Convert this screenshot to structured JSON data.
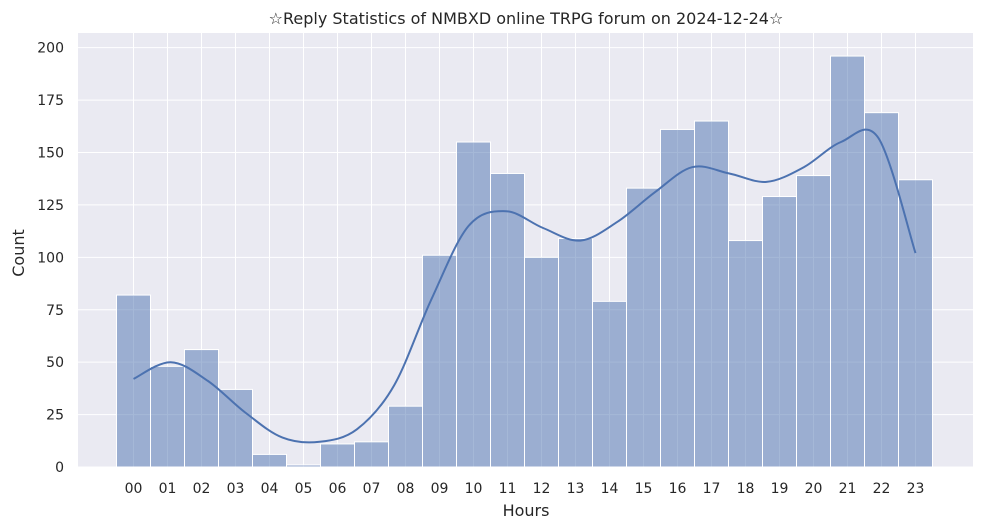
{
  "chart_data": {
    "type": "bar",
    "title": "☆Reply Statistics of NMBXD online TRPG forum on 2024-12-24☆",
    "xlabel": "Hours",
    "ylabel": "Count",
    "categories": [
      "00",
      "01",
      "02",
      "03",
      "04",
      "05",
      "06",
      "07",
      "08",
      "09",
      "10",
      "11",
      "12",
      "13",
      "14",
      "15",
      "16",
      "17",
      "18",
      "19",
      "20",
      "21",
      "22",
      "23"
    ],
    "values": [
      82,
      48,
      56,
      37,
      6,
      1,
      11,
      12,
      29,
      101,
      155,
      140,
      100,
      109,
      79,
      133,
      161,
      165,
      108,
      129,
      139,
      196,
      169,
      137
    ],
    "kde": [
      42,
      50,
      41,
      26,
      14,
      12,
      18,
      39,
      80,
      115,
      122,
      114,
      108,
      117,
      131,
      143,
      140,
      136,
      143,
      155,
      157,
      102
    ],
    "ylim": [
      0,
      207
    ],
    "yticks": [
      0,
      25,
      50,
      75,
      100,
      125,
      150,
      175,
      200
    ],
    "grid": true,
    "colors": {
      "background": "#eaeaf2",
      "grid": "#ffffff",
      "bar_fill": "#4c72b0",
      "bar_opacity": 0.5,
      "kde_line": "#4c72b0"
    }
  }
}
